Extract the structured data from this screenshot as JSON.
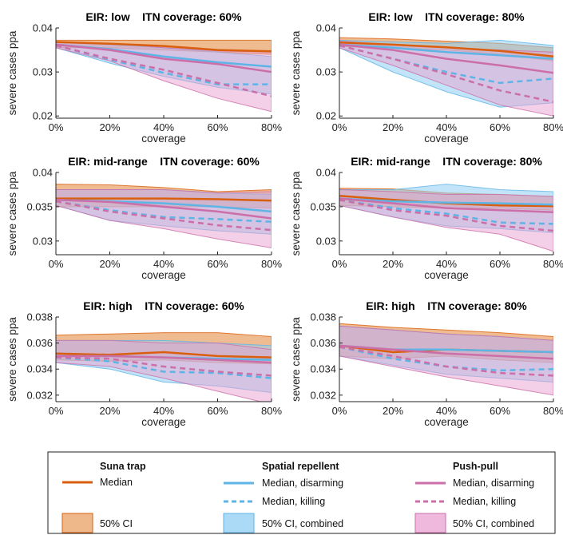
{
  "chart_data": [
    {
      "type": "line",
      "title": "EIR: low    ITN coverage: 60%",
      "xlabel": "coverage",
      "ylabel": "severe cases ppa",
      "x": [
        0,
        20,
        40,
        60,
        80
      ],
      "x_tick_labels": [
        "0%",
        "20%",
        "40%",
        "60%",
        "80%"
      ],
      "ylim": [
        0.0195,
        0.04
      ],
      "y_ticks": [
        0.02,
        0.03,
        0.04
      ],
      "y_tick_labels": [
        "0.02",
        "0.03",
        "0.04"
      ],
      "series": [
        {
          "name": "Suna trap — Median",
          "values": [
            0.0368,
            0.0364,
            0.0359,
            0.035,
            0.0347
          ]
        },
        {
          "name": "Spatial repellent — Median, disarming",
          "values": [
            0.0362,
            0.0352,
            0.0335,
            0.0322,
            0.0312
          ]
        },
        {
          "name": "Spatial repellent — Median, killing",
          "values": [
            0.036,
            0.0328,
            0.0298,
            0.0272,
            0.0272
          ]
        },
        {
          "name": "Push-pull — Median, disarming",
          "values": [
            0.0362,
            0.035,
            0.033,
            0.0318,
            0.03
          ]
        },
        {
          "name": "Push-pull — Median, killing",
          "values": [
            0.036,
            0.033,
            0.0305,
            0.0275,
            0.0245
          ]
        }
      ],
      "bands": [
        {
          "name": "Suna trap — 50% CI",
          "lower": [
            0.0355,
            0.0355,
            0.035,
            0.0345,
            0.034
          ],
          "upper": [
            0.0372,
            0.0372,
            0.0372,
            0.0372,
            0.0372
          ]
        },
        {
          "name": "Spatial repellent — 50% CI, combined",
          "lower": [
            0.0355,
            0.032,
            0.029,
            0.0265,
            0.025
          ],
          "upper": [
            0.0368,
            0.0362,
            0.0355,
            0.0345,
            0.0335
          ]
        },
        {
          "name": "Push-pull — 50% CI, combined",
          "lower": [
            0.0355,
            0.0325,
            0.028,
            0.024,
            0.021
          ],
          "upper": [
            0.0368,
            0.0365,
            0.0355,
            0.0348,
            0.0345
          ]
        }
      ]
    },
    {
      "type": "line",
      "title": "EIR: low    ITN coverage: 80%",
      "xlabel": "coverage",
      "ylabel": "severe cases ppa",
      "x": [
        0,
        20,
        40,
        60,
        80
      ],
      "x_tick_labels": [
        "0%",
        "20%",
        "40%",
        "60%",
        "80%"
      ],
      "ylim": [
        0.0195,
        0.04
      ],
      "y_ticks": [
        0.02,
        0.03,
        0.04
      ],
      "y_tick_labels": [
        "0.02",
        "0.03",
        "0.04"
      ],
      "series": [
        {
          "name": "Suna trap — Median",
          "values": [
            0.0367,
            0.0362,
            0.0356,
            0.0348,
            0.0335
          ]
        },
        {
          "name": "Spatial repellent — Median, disarming",
          "values": [
            0.0362,
            0.0355,
            0.0345,
            0.0338,
            0.033
          ]
        },
        {
          "name": "Spatial repellent — Median, killing",
          "values": [
            0.036,
            0.033,
            0.03,
            0.0275,
            0.0285
          ]
        },
        {
          "name": "Push-pull — Median, disarming",
          "values": [
            0.0362,
            0.035,
            0.033,
            0.0315,
            0.0298
          ]
        },
        {
          "name": "Push-pull — Median, killing",
          "values": [
            0.036,
            0.033,
            0.0295,
            0.0258,
            0.0232
          ]
        }
      ],
      "bands": [
        {
          "name": "Suna trap — 50% CI",
          "lower": [
            0.0358,
            0.0355,
            0.035,
            0.034,
            0.0325
          ],
          "upper": [
            0.0378,
            0.0375,
            0.037,
            0.0365,
            0.0355
          ]
        },
        {
          "name": "Spatial repellent — 50% CI, combined",
          "lower": [
            0.0355,
            0.03,
            0.0255,
            0.022,
            0.023
          ],
          "upper": [
            0.0372,
            0.0368,
            0.0365,
            0.0372,
            0.036
          ]
        },
        {
          "name": "Push-pull — 50% CI, combined",
          "lower": [
            0.0355,
            0.0315,
            0.027,
            0.0225,
            0.02
          ],
          "upper": [
            0.037,
            0.0362,
            0.0355,
            0.035,
            0.0345
          ]
        }
      ]
    },
    {
      "type": "line",
      "title": "EIR: mid-range    ITN coverage: 60%",
      "xlabel": "coverage",
      "ylabel": "severe cases ppa",
      "x": [
        0,
        20,
        40,
        60,
        80
      ],
      "x_tick_labels": [
        "0%",
        "20%",
        "40%",
        "60%",
        "80%"
      ],
      "ylim": [
        0.028,
        0.04
      ],
      "y_ticks": [
        0.03,
        0.035,
        0.04
      ],
      "y_tick_labels": [
        "0.03",
        "0.035",
        "0.04"
      ],
      "series": [
        {
          "name": "Suna trap — Median",
          "values": [
            0.0362,
            0.0362,
            0.0362,
            0.0361,
            0.0359
          ]
        },
        {
          "name": "Spatial repellent — Median, disarming",
          "values": [
            0.036,
            0.0358,
            0.0355,
            0.035,
            0.0343
          ]
        },
        {
          "name": "Spatial repellent — Median, killing",
          "values": [
            0.0358,
            0.0345,
            0.0335,
            0.0332,
            0.0328
          ]
        },
        {
          "name": "Push-pull — Median, disarming",
          "values": [
            0.036,
            0.0357,
            0.035,
            0.0343,
            0.0333
          ]
        },
        {
          "name": "Push-pull — Median, killing",
          "values": [
            0.0358,
            0.0343,
            0.0333,
            0.0323,
            0.0316
          ]
        }
      ],
      "bands": [
        {
          "name": "Suna trap — 50% CI",
          "lower": [
            0.035,
            0.035,
            0.035,
            0.035,
            0.0348
          ],
          "upper": [
            0.0383,
            0.0382,
            0.0378,
            0.0372,
            0.0375
          ]
        },
        {
          "name": "Spatial repellent — 50% CI, combined",
          "lower": [
            0.0352,
            0.033,
            0.0322,
            0.0315,
            0.031
          ],
          "upper": [
            0.0375,
            0.0375,
            0.0375,
            0.037,
            0.0368
          ]
        },
        {
          "name": "Push-pull — 50% CI, combined",
          "lower": [
            0.0352,
            0.033,
            0.0318,
            0.0303,
            0.029
          ],
          "upper": [
            0.0375,
            0.0375,
            0.0375,
            0.037,
            0.0372
          ]
        }
      ]
    },
    {
      "type": "line",
      "title": "EIR: mid-range    ITN coverage: 80%",
      "xlabel": "coverage",
      "ylabel": "severe cases ppa",
      "x": [
        0,
        20,
        40,
        60,
        80
      ],
      "x_tick_labels": [
        "0%",
        "20%",
        "40%",
        "60%",
        "80%"
      ],
      "ylim": [
        0.028,
        0.04
      ],
      "y_ticks": [
        0.03,
        0.035,
        0.04
      ],
      "y_tick_labels": [
        "0.03",
        "0.035",
        "0.04"
      ],
      "series": [
        {
          "name": "Suna trap — Median",
          "values": [
            0.0366,
            0.036,
            0.0355,
            0.0352,
            0.0351
          ]
        },
        {
          "name": "Spatial repellent — Median, disarming",
          "values": [
            0.0362,
            0.0358,
            0.0356,
            0.0355,
            0.0353
          ]
        },
        {
          "name": "Spatial repellent — Median, killing",
          "values": [
            0.036,
            0.0348,
            0.034,
            0.0327,
            0.0325
          ]
        },
        {
          "name": "Push-pull — Median, disarming",
          "values": [
            0.0362,
            0.0355,
            0.0348,
            0.0345,
            0.0342
          ]
        },
        {
          "name": "Push-pull — Median, killing",
          "values": [
            0.036,
            0.0345,
            0.0337,
            0.0322,
            0.0315
          ]
        }
      ],
      "bands": [
        {
          "name": "Suna trap — 50% CI",
          "lower": [
            0.0352,
            0.035,
            0.0348,
            0.0348,
            0.0345
          ],
          "upper": [
            0.0377,
            0.0376,
            0.037,
            0.0368,
            0.0365
          ]
        },
        {
          "name": "Spatial repellent — 50% CI, combined",
          "lower": [
            0.0352,
            0.0335,
            0.0322,
            0.0318,
            0.0312
          ],
          "upper": [
            0.0375,
            0.0375,
            0.0383,
            0.0375,
            0.0372
          ]
        },
        {
          "name": "Push-pull — 50% CI, combined",
          "lower": [
            0.0352,
            0.0335,
            0.032,
            0.031,
            0.0285
          ],
          "upper": [
            0.0375,
            0.0372,
            0.0368,
            0.0368,
            0.0365
          ]
        }
      ]
    },
    {
      "type": "line",
      "title": "EIR: high    ITN coverage: 60%",
      "xlabel": "coverage",
      "ylabel": "severe cases ppa",
      "x": [
        0,
        20,
        40,
        60,
        80
      ],
      "x_tick_labels": [
        "0%",
        "20%",
        "40%",
        "60%",
        "80%"
      ],
      "ylim": [
        0.0315,
        0.038
      ],
      "y_ticks": [
        0.032,
        0.034,
        0.036,
        0.038
      ],
      "y_tick_labels": [
        "0.032",
        "0.034",
        "0.036",
        "0.038"
      ],
      "series": [
        {
          "name": "Suna trap — Median",
          "values": [
            0.0352,
            0.0351,
            0.0353,
            0.035,
            0.0349
          ]
        },
        {
          "name": "Spatial repellent — Median, disarming",
          "values": [
            0.035,
            0.035,
            0.0349,
            0.0348,
            0.0347
          ]
        },
        {
          "name": "Spatial repellent — Median, killing",
          "values": [
            0.0349,
            0.0346,
            0.0338,
            0.0337,
            0.0333
          ]
        },
        {
          "name": "Push-pull — Median, disarming",
          "values": [
            0.035,
            0.035,
            0.0349,
            0.0347,
            0.0345
          ]
        },
        {
          "name": "Push-pull — Median, killing",
          "values": [
            0.0349,
            0.0348,
            0.0342,
            0.0338,
            0.0335
          ]
        }
      ],
      "bands": [
        {
          "name": "Suna trap — 50% CI",
          "lower": [
            0.0347,
            0.0346,
            0.0347,
            0.0345,
            0.0344
          ],
          "upper": [
            0.0366,
            0.0367,
            0.0368,
            0.0368,
            0.0365
          ]
        },
        {
          "name": "Spatial repellent — 50% CI, combined",
          "lower": [
            0.0345,
            0.034,
            0.033,
            0.0327,
            0.0322
          ],
          "upper": [
            0.0362,
            0.0362,
            0.0362,
            0.036,
            0.0358
          ]
        },
        {
          "name": "Push-pull — 50% CI, combined",
          "lower": [
            0.0345,
            0.0342,
            0.0333,
            0.0323,
            0.0313
          ],
          "upper": [
            0.0362,
            0.0362,
            0.036,
            0.036,
            0.0355
          ]
        }
      ]
    },
    {
      "type": "line",
      "title": "EIR: high    ITN coverage: 80%",
      "xlabel": "coverage",
      "ylabel": "severe cases ppa",
      "x": [
        0,
        20,
        40,
        60,
        80
      ],
      "x_tick_labels": [
        "0%",
        "20%",
        "40%",
        "60%",
        "80%"
      ],
      "ylim": [
        0.0315,
        0.038
      ],
      "y_ticks": [
        0.032,
        0.034,
        0.036,
        0.038
      ],
      "y_tick_labels": [
        "0.032",
        "0.034",
        "0.036",
        "0.038"
      ],
      "series": [
        {
          "name": "Suna trap — Median",
          "values": [
            0.0358,
            0.0353,
            0.0355,
            0.0354,
            0.0353
          ]
        },
        {
          "name": "Spatial repellent — Median, disarming",
          "values": [
            0.0358,
            0.0355,
            0.0355,
            0.0354,
            0.0353
          ]
        },
        {
          "name": "Spatial repellent — Median, killing",
          "values": [
            0.0357,
            0.0348,
            0.0342,
            0.0339,
            0.034
          ]
        },
        {
          "name": "Push-pull — Median, disarming",
          "values": [
            0.0358,
            0.0355,
            0.0352,
            0.035,
            0.0348
          ]
        },
        {
          "name": "Push-pull — Median, killing",
          "values": [
            0.0357,
            0.035,
            0.0342,
            0.0337,
            0.0335
          ]
        }
      ],
      "bands": [
        {
          "name": "Suna trap — 50% CI",
          "lower": [
            0.035,
            0.0348,
            0.035,
            0.0347,
            0.0345
          ],
          "upper": [
            0.0375,
            0.0372,
            0.037,
            0.0368,
            0.0365
          ]
        },
        {
          "name": "Spatial repellent — 50% CI, combined",
          "lower": [
            0.035,
            0.0343,
            0.0336,
            0.0333,
            0.033
          ],
          "upper": [
            0.0373,
            0.037,
            0.0367,
            0.0365,
            0.0362
          ]
        },
        {
          "name": "Push-pull — 50% CI, combined",
          "lower": [
            0.035,
            0.0342,
            0.0334,
            0.0327,
            0.032
          ],
          "upper": [
            0.0373,
            0.037,
            0.0367,
            0.0365,
            0.0362
          ]
        }
      ]
    }
  ],
  "colors": {
    "suna_line": "#d95f0e",
    "suna_fill": "#e8a064",
    "spatial_line": "#5fb4e6",
    "spatial_fill": "#8fcdf3",
    "pushpull_line": "#cc6fa9",
    "pushpull_fill": "#e8a2d0"
  },
  "legend": {
    "suna": {
      "header": "Suna trap",
      "median": "Median",
      "ci": "50% CI"
    },
    "spatial": {
      "header": "Spatial repellent",
      "median_disarming": "Median, disarming",
      "median_killing": "Median, killing",
      "ci": "50% CI, combined"
    },
    "pushpull": {
      "header": "Push-pull",
      "median_disarming": "Median, disarming",
      "median_killing": "Median, killing",
      "ci": "50% CI, combined"
    }
  }
}
